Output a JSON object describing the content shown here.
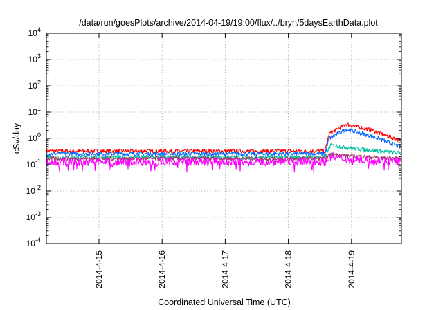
{
  "chart_data": {
    "type": "line",
    "title": "/data/run/goesPlots/archive/2014-04-19/19:00/flux/../bryn/5daysEarthData.plot",
    "xlabel": "Coordinated Universal Time (UTC)",
    "ylabel": "cSv/day",
    "yscale": "log",
    "ylim": [
      0.0001,
      10000
    ],
    "y_ticks": [
      {
        "exp": "-4",
        "value": 0.0001
      },
      {
        "exp": "-3",
        "value": 0.001
      },
      {
        "exp": "-2",
        "value": 0.01
      },
      {
        "exp": "-1",
        "value": 0.1
      },
      {
        "exp": "0",
        "value": 1
      },
      {
        "exp": "1",
        "value": 10
      },
      {
        "exp": "2",
        "value": 100
      },
      {
        "exp": "3",
        "value": 1000
      },
      {
        "exp": "4",
        "value": 10000
      }
    ],
    "xlim": [
      "2014-04-14 04:00",
      "2014-04-19 19:00"
    ],
    "x_ticks": [
      "2014-4-15",
      "2014-4-16",
      "2014-4-17",
      "2014-4-18",
      "2014-4-19"
    ],
    "grid": true,
    "legend": "none",
    "series": [
      {
        "color": "#ff0000",
        "x": [
          "2014-04-14 04:00",
          "2014-04-18 14:00",
          "2014-04-18 15:30",
          "2014-04-18 22:00",
          "2014-04-19 08:00",
          "2014-04-19 19:00"
        ],
        "y": [
          0.33,
          0.33,
          1.5,
          3.5,
          2.0,
          0.8
        ]
      },
      {
        "color": "#0066ff",
        "x": [
          "2014-04-14 04:00",
          "2014-04-18 14:00",
          "2014-04-18 15:30",
          "2014-04-18 22:00",
          "2014-04-19 08:00",
          "2014-04-19 19:00"
        ],
        "y": [
          0.26,
          0.26,
          1.0,
          2.2,
          1.2,
          0.45
        ]
      },
      {
        "color": "#00c0a0",
        "x": [
          "2014-04-14 04:00",
          "2014-04-18 14:00",
          "2014-04-18 16:00",
          "2014-04-18 22:00",
          "2014-04-19 08:00",
          "2014-04-19 19:00"
        ],
        "y": [
          0.19,
          0.19,
          0.55,
          0.45,
          0.35,
          0.27
        ]
      },
      {
        "color": "#a04060",
        "x": [
          "2014-04-14 04:00",
          "2014-04-18 14:00",
          "2014-04-18 16:00",
          "2014-04-18 22:00",
          "2014-04-19 08:00",
          "2014-04-19 19:00"
        ],
        "y": [
          0.17,
          0.17,
          0.25,
          0.22,
          0.19,
          0.17
        ]
      },
      {
        "color": "#ff00ff",
        "x": [
          "2014-04-14 04:00",
          "2014-04-18 14:00",
          "2014-04-18 16:00",
          "2014-04-18 22:00",
          "2014-04-19 08:00",
          "2014-04-19 19:00"
        ],
        "y": [
          0.13,
          0.13,
          0.2,
          0.17,
          0.15,
          0.13
        ]
      }
    ]
  }
}
